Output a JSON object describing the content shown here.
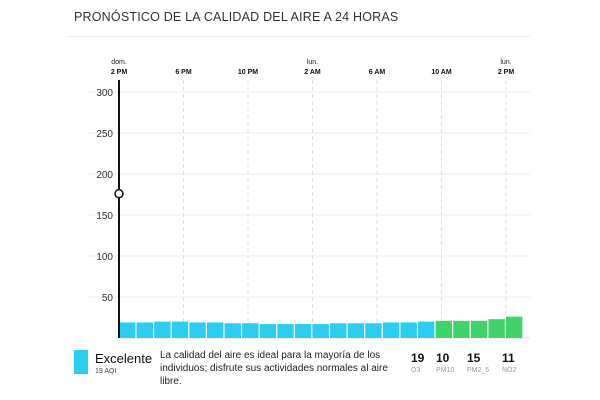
{
  "title": "PRONÓSTICO DE LA CALIDAD DEL AIRE A 24 HORAS",
  "chart_data": {
    "type": "bar",
    "title": "PRONÓSTICO DE LA CALIDAD DEL AIRE A 24 HORAS",
    "y_ticks": [
      "50",
      "100",
      "150",
      "200",
      "250",
      "300"
    ],
    "ylim": [
      0,
      300
    ],
    "x_ticks": [
      {
        "top": "dom.",
        "bottom": "2 PM"
      },
      {
        "top": "",
        "bottom": "6 PM"
      },
      {
        "top": "",
        "bottom": "10 PM"
      },
      {
        "top": "lun.",
        "bottom": "2 AM"
      },
      {
        "top": "",
        "bottom": "6 AM"
      },
      {
        "top": "",
        "bottom": "10 AM"
      },
      {
        "top": "lun.",
        "bottom": "2 PM"
      }
    ],
    "values": [
      19,
      19,
      20,
      20,
      19,
      19,
      18,
      18,
      17,
      17,
      17,
      17,
      18,
      18,
      18,
      19,
      19,
      20,
      21,
      21,
      21,
      23,
      26
    ],
    "colors": [
      "#2ccdf2",
      "#2ccdf2",
      "#2ccdf2",
      "#2ccdf2",
      "#2ccdf2",
      "#2ccdf2",
      "#2ccdf2",
      "#2ccdf2",
      "#2ccdf2",
      "#2ccdf2",
      "#2ccdf2",
      "#2ccdf2",
      "#2ccdf2",
      "#2ccdf2",
      "#2ccdf2",
      "#2ccdf2",
      "#2ccdf2",
      "#2ccdf2",
      "#3fd36a",
      "#3fd36a",
      "#3fd36a",
      "#3fd36a",
      "#3fd36a"
    ],
    "current_marker_value": 176,
    "grid": true
  },
  "legend": {
    "label": "Excelente",
    "aqi": "19 AQI",
    "color": "#2ccdf2",
    "description": "La calidad del aire es ideal para la mayoría de los individuos; disfrute sus actividades normales al aire libre."
  },
  "pollutants": [
    {
      "value": "19",
      "name": "O3"
    },
    {
      "value": "10",
      "name": "PM10"
    },
    {
      "value": "15",
      "name": "PM2_5"
    },
    {
      "value": "11",
      "name": "NO2"
    }
  ]
}
